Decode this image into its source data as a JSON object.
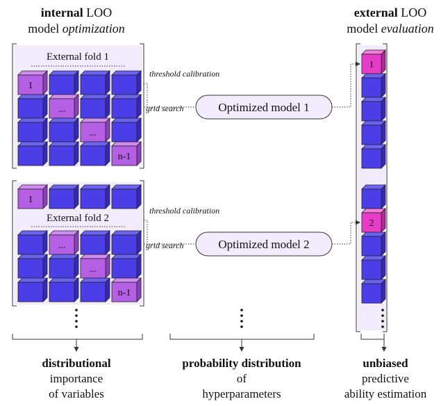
{
  "left_title": {
    "bold": "internal",
    "normal": "LOO",
    "line2": "model",
    "italic": "optimization"
  },
  "right_title": {
    "bold": "external",
    "normal": "LOO",
    "line2": "model",
    "italic": "evaluation"
  },
  "folds": [
    {
      "label": "External fold 1",
      "cube_labels": [
        "1",
        "...",
        "...",
        "n-1"
      ],
      "threshold": "threshold calibration",
      "grid": "grid search",
      "model": "Optimized model 1",
      "test_label": "1"
    },
    {
      "label": "External fold 2",
      "cube_labels": [
        "1",
        "...",
        "...",
        "n-1"
      ],
      "threshold": "threshold calibration",
      "grid": "grid search",
      "model": "Optimized model 2",
      "test_label": "2"
    }
  ],
  "captions": [
    {
      "bold": "distributional",
      "lines": [
        "importance",
        "of variables"
      ]
    },
    {
      "bold": "probability distribution",
      "lines": [
        "of",
        "hyperparameters"
      ]
    },
    {
      "bold": "unbiased",
      "lines": [
        "predictive",
        "ability estimation"
      ]
    }
  ]
}
